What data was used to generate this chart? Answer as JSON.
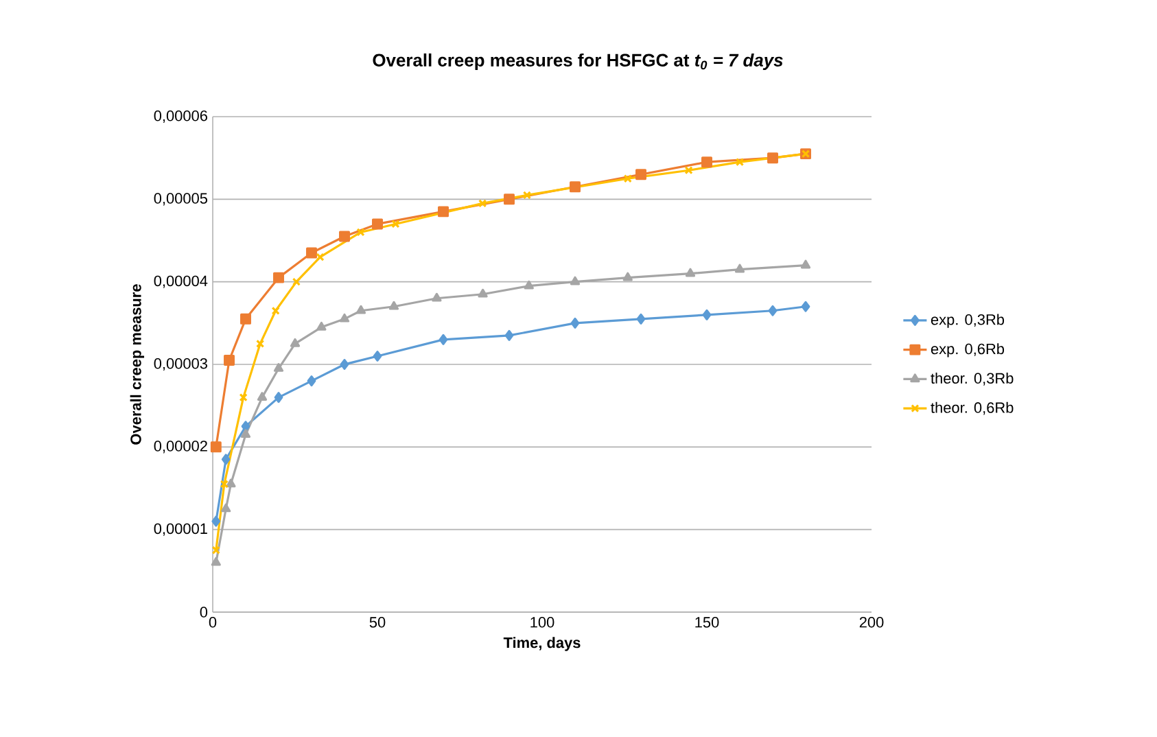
{
  "chart_data": {
    "type": "line",
    "title": "Overall creep measures for HSFGC at *t$_{0}$ = 7 days*",
    "xlabel": "Time, days",
    "ylabel": "Overall creep measure",
    "xlim": [
      0,
      200
    ],
    "xticks": [
      0,
      50,
      100,
      150,
      200
    ],
    "ylim": [
      0,
      6e-05
    ],
    "yticks": [
      0,
      {
        "value": 1e-05,
        "label": "0,00001"
      },
      {
        "value": 2e-05,
        "label": "0,00002"
      },
      {
        "value": 3e-05,
        "label": "0,00003"
      },
      {
        "value": 4e-05,
        "label": "0,00004"
      },
      {
        "value": 5e-05,
        "label": "0,00005"
      },
      {
        "value": 6e-05,
        "label": "0,00006"
      }
    ],
    "grid": "y",
    "legend": "right",
    "series": [
      {
        "name": "exp. 0,3Rb",
        "color": "#5b9bd5",
        "marker": "diamond",
        "x": [
          1,
          4,
          10,
          20,
          30,
          40,
          50,
          70,
          90,
          110,
          130,
          150,
          170,
          180
        ],
        "values": [
          1.1e-05,
          1.85e-05,
          2.25e-05,
          2.6e-05,
          2.8e-05,
          3e-05,
          3.1e-05,
          3.3e-05,
          3.35e-05,
          3.5e-05,
          3.55e-05,
          3.6e-05,
          3.65e-05,
          3.7e-05
        ]
      },
      {
        "name": "exp. 0,6Rb",
        "color": "#ed7d31",
        "marker": "square",
        "x": [
          1,
          5,
          10,
          20,
          30,
          40,
          50,
          70,
          90,
          110,
          130,
          150,
          170,
          180
        ],
        "values": [
          2e-05,
          3.05e-05,
          3.55e-05,
          4.05e-05,
          4.35e-05,
          4.55e-05,
          4.7e-05,
          4.85e-05,
          5e-05,
          5.15e-05,
          5.3e-05,
          5.45e-05,
          5.5e-05,
          5.55e-05
        ]
      },
      {
        "name": "theor. 0,3Rb",
        "color": "#a5a5a5",
        "marker": "triangle",
        "x": [
          1,
          4,
          5.5,
          10,
          15,
          20,
          25,
          33,
          40,
          45,
          55,
          68,
          82,
          96,
          110,
          126,
          145,
          160,
          180
        ],
        "values": [
          6e-06,
          1.25e-05,
          1.55e-05,
          2.15e-05,
          2.6e-05,
          2.95e-05,
          3.25e-05,
          3.45e-05,
          3.55e-05,
          3.65e-05,
          3.7e-05,
          3.8e-05,
          3.85e-05,
          3.95e-05,
          4e-05,
          4.05e-05,
          4.1e-05,
          4.15e-05,
          4.2e-05
        ]
      },
      {
        "name": "theor. 0,6Rb",
        "color": "#ffc000",
        "marker": "cross",
        "x": [
          1,
          3.5,
          9.3,
          14.4,
          19.1,
          25.4,
          32.6,
          44.9,
          55.5,
          81.9,
          95.4,
          126,
          144.5,
          160,
          180
        ],
        "values": [
          7.5e-06,
          1.55e-05,
          2.6e-05,
          3.25e-05,
          3.65e-05,
          4e-05,
          4.3e-05,
          4.6e-05,
          4.7e-05,
          4.95e-05,
          5.05e-05,
          5.25e-05,
          5.35e-05,
          5.45e-05,
          5.55e-05
        ]
      }
    ]
  }
}
